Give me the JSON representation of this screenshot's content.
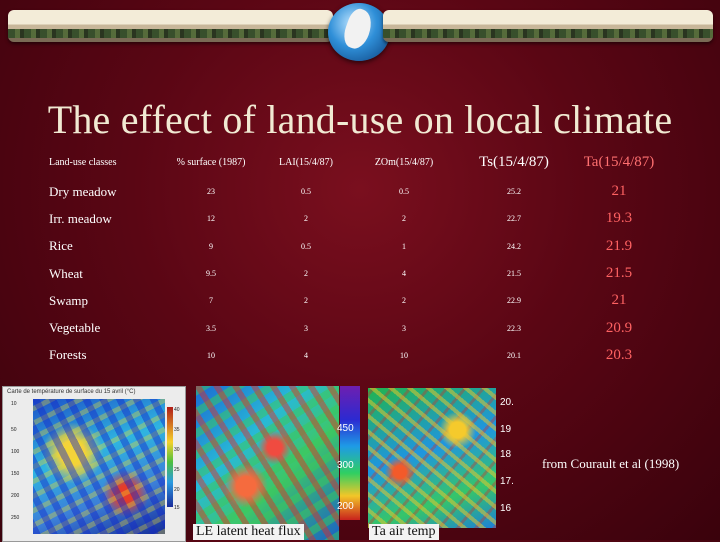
{
  "title": "The effect of land-use on local climate",
  "table": {
    "headers": [
      "Land-use classes",
      "% surface (1987)",
      "LAI(15/4/87)",
      "ZOm(15/4/87)",
      "Ts(15/4/87)",
      "Ta(15/4/87)"
    ],
    "rows": [
      {
        "name": "Dry meadow",
        "surface": "23",
        "lai": "0.5",
        "zom": "0.5",
        "ts": "25.2",
        "ta": "21"
      },
      {
        "name": "Irr. meadow",
        "surface": "12",
        "lai": "2",
        "zom": "2",
        "ts": "22.7",
        "ta": "19.3"
      },
      {
        "name": "Rice",
        "surface": "9",
        "lai": "0.5",
        "zom": "1",
        "ts": "24.2",
        "ta": "21.9"
      },
      {
        "name": "Wheat",
        "surface": "9.5",
        "lai": "2",
        "zom": "4",
        "ts": "21.5",
        "ta": "21.5"
      },
      {
        "name": "Swamp",
        "surface": "7",
        "lai": "2",
        "zom": "2",
        "ts": "22.9",
        "ta": "21"
      },
      {
        "name": "Vegetable",
        "surface": "3.5",
        "lai": "3",
        "zom": "3",
        "ts": "22.3",
        "ta": "20.9"
      },
      {
        "name": "Forests",
        "surface": "10",
        "lai": "4",
        "zom": "10",
        "ts": "20.1",
        "ta": "20.3"
      }
    ]
  },
  "maps": {
    "surface_temp_caption": "Carte de température de surface du 15 avril (°C)",
    "surface_temp_scale": [
      "40",
      "35",
      "30",
      "25",
      "20",
      "15"
    ],
    "surface_temp_yticks": [
      "10",
      "50",
      "100",
      "150",
      "200",
      "250"
    ],
    "le_scale": [
      "450",
      "300",
      "200"
    ],
    "ta_scale": [
      "20.",
      "19",
      "18",
      "17.",
      "16"
    ],
    "le_caption": "LE latent heat flux",
    "ta_caption": "Ta air temp"
  },
  "citation": "from Courault et al (1998)",
  "colors": {
    "background": "#5a0614",
    "title": "#f1ead3",
    "ta_values": "#ff6262"
  }
}
